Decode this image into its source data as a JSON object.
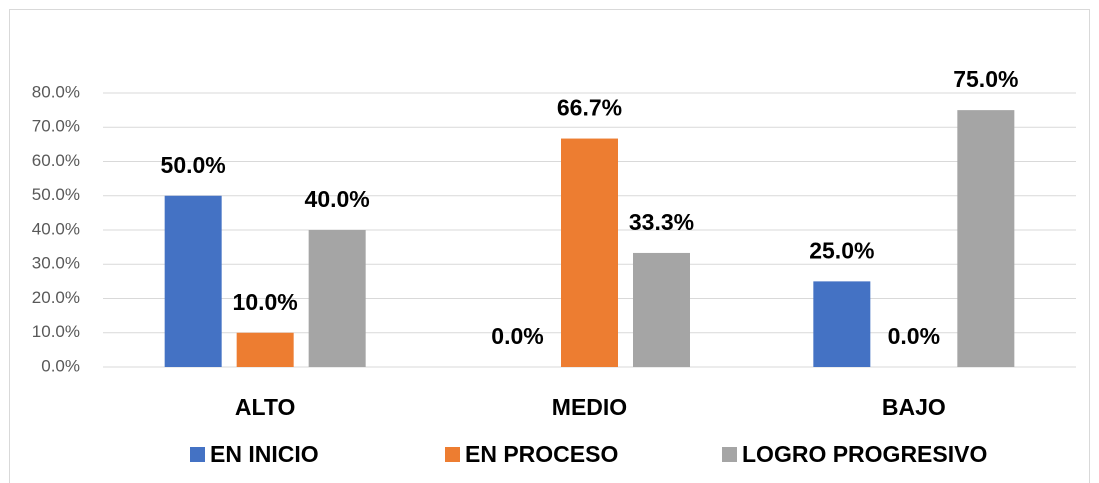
{
  "chart_data": {
    "type": "bar",
    "categories": [
      "ALTO",
      "MEDIO",
      "BAJO"
    ],
    "series": [
      {
        "name": "EN INICIO",
        "color": "#4472c4",
        "values": [
          50,
          0,
          25
        ],
        "value_labels": [
          "50.0%",
          "0.0%",
          "25.0%"
        ]
      },
      {
        "name": "EN PROCESO",
        "color": "#ed7d31",
        "values": [
          10,
          66.7,
          0
        ],
        "value_labels": [
          "10.0%",
          "66.7%",
          "0.0%"
        ]
      },
      {
        "name": "LOGRO PROGRESIVO",
        "color": "#a5a5a5",
        "values": [
          40,
          33.3,
          75
        ],
        "value_labels": [
          "40.0%",
          "33.3%",
          "75.0%"
        ]
      }
    ],
    "ylim": [
      0,
      80
    ],
    "yticks": [
      {
        "value": 0,
        "label": "0.0%"
      },
      {
        "value": 10,
        "label": "10.0%"
      },
      {
        "value": 20,
        "label": "20.0%"
      },
      {
        "value": 30,
        "label": "30.0%"
      },
      {
        "value": 40,
        "label": "40.0%"
      },
      {
        "value": 50,
        "label": "50.0%"
      },
      {
        "value": 60,
        "label": "60.0%"
      },
      {
        "value": 70,
        "label": "70.0%"
      },
      {
        "value": 80,
        "label": "80.0%"
      }
    ],
    "grid": true,
    "legend": "bottom"
  }
}
